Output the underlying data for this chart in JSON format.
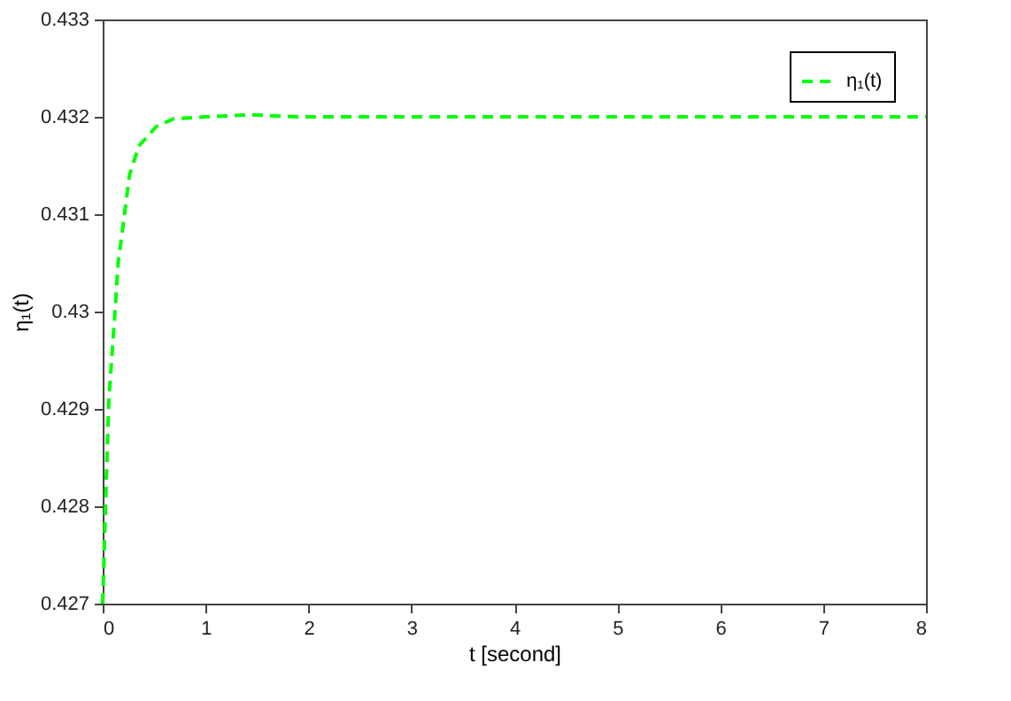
{
  "chart_data": {
    "type": "line",
    "xlabel": "t [second]",
    "ylabel": "η₁(t)",
    "series": [
      {
        "name": "η₁(t)",
        "color": "#00ff00",
        "line_style": "dashed",
        "x": [
          0,
          0.03,
          0.06,
          0.12,
          0.15,
          0.2,
          0.26,
          0.35,
          0.52,
          0.69,
          1.0,
          1.44,
          1.9,
          3,
          4,
          5,
          6,
          7,
          8
        ],
        "values": [
          0.427,
          0.4281,
          0.4291,
          0.43,
          0.4305,
          0.4309,
          0.4314,
          0.4317,
          0.4319,
          0.43198,
          0.432,
          0.43202,
          0.432,
          0.432,
          0.432,
          0.432,
          0.432,
          0.432,
          0.432
        ]
      }
    ],
    "xlim": [
      0,
      8
    ],
    "xticks": [
      0,
      1,
      2,
      3,
      4,
      5,
      6,
      7,
      8
    ],
    "ylim": [
      0.427,
      0.433
    ],
    "yticks": [
      0.427,
      0.428,
      0.429,
      0.43,
      0.431,
      0.432,
      0.433
    ],
    "legend": "top right",
    "grid": false,
    "marker": "none"
  }
}
